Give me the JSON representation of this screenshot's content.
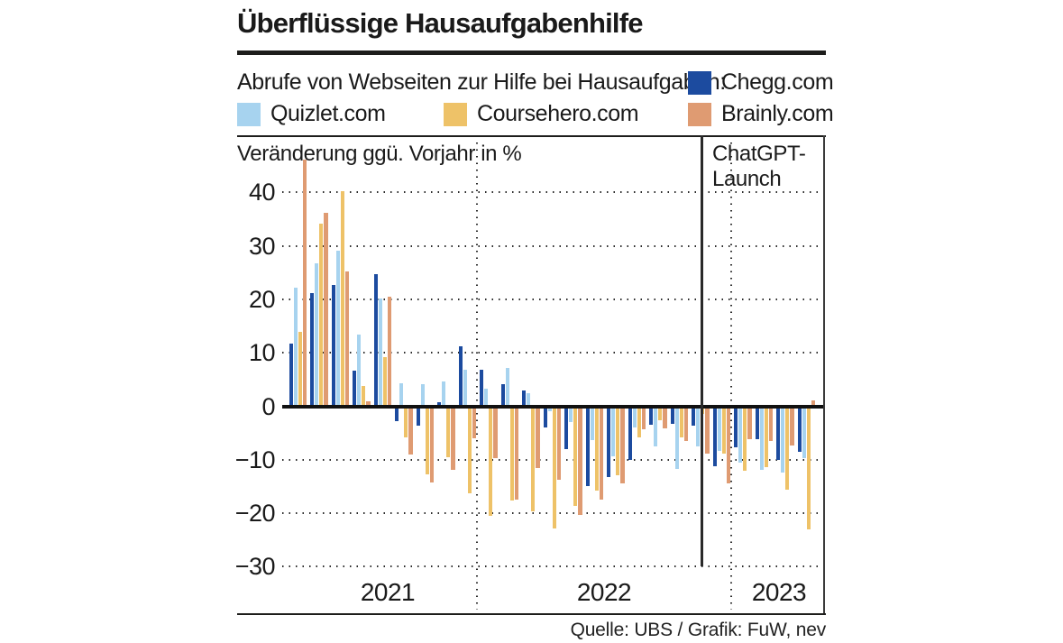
{
  "title": "Überflüssige Hausaufgabenhilfe",
  "legend": {
    "intro": "Abrufe von Webseiten zur Hilfe bei Hausaufgaben:",
    "chegg_label": "Chegg.com",
    "quizlet_label": "Quizlet.com",
    "coursehero_label": "Coursehero.com",
    "brainly_label": "Brainly.com"
  },
  "axis_note": "Veränderung ggü. Vorjahr in %",
  "annotation": {
    "line1": "ChatGPT-",
    "line2": "Launch"
  },
  "source": "Quelle: UBS / Grafik: FuW, nev",
  "colors": {
    "chegg": "#1c4b9f",
    "quizlet": "#a7d3ef",
    "coursehero": "#eec268",
    "brainly": "#df9b72",
    "rule": "#1d1d1b"
  },
  "chart_data": {
    "type": "bar",
    "title": "Überflüssige Hausaufgabenhilfe",
    "subtitle": "Abrufe von Webseiten zur Hilfe bei Hausaufgaben",
    "ylabel": "Veränderung ggü. Vorjahr in %",
    "ylim": [
      -30,
      46
    ],
    "grid": "dotted",
    "legend_position": "top",
    "x": [
      "2021-04",
      "2021-05",
      "2021-06",
      "2021-07",
      "2021-08",
      "2021-09",
      "2021-10",
      "2021-11",
      "2021-12",
      "2022-01",
      "2022-02",
      "2022-03",
      "2022-04",
      "2022-05",
      "2022-06",
      "2022-07",
      "2022-08",
      "2022-09",
      "2022-10",
      "2022-11",
      "2022-12",
      "2023-01",
      "2023-02",
      "2023-03",
      "2023-04"
    ],
    "series": [
      {
        "name": "Chegg.com",
        "color": "#1c4b9f",
        "values": [
          11.5,
          21,
          22.5,
          6.5,
          24.5,
          -2.6,
          -3.4,
          0.6,
          11,
          6.6,
          4,
          2.7,
          -3.8,
          -7.8,
          -14.7,
          -13,
          -9.9,
          -3.3,
          -3.2,
          -3.4,
          -11,
          -7.5,
          -6,
          -9.8,
          -8.4
        ]
      },
      {
        "name": "Quizlet.com",
        "color": "#a7d3ef",
        "values": [
          22,
          26.5,
          29,
          13.3,
          20,
          4.2,
          4,
          4.4,
          6.6,
          3.1,
          7,
          2.3,
          -0.7,
          -2.8,
          -6.2,
          -9.2,
          -3.8,
          -7.4,
          -11.5,
          -7.3,
          -8.2,
          -10.4,
          -11.8,
          -12.2,
          -9.6
        ]
      },
      {
        "name": "Coursehero.com",
        "color": "#eec268",
        "values": [
          13.7,
          34,
          40,
          3.6,
          9,
          -5.6,
          -12.5,
          -9.4,
          -16.1,
          -20.4,
          -17.5,
          -19.5,
          -22.7,
          -18.5,
          -15.6,
          -12.7,
          -5.6,
          -2.4,
          -5.6,
          -1.3,
          -8.7,
          -11.9,
          -11.2,
          -15.5,
          -22.8
        ]
      },
      {
        "name": "Brainly.com",
        "color": "#df9b72",
        "values": [
          46,
          36,
          25,
          0.7,
          20.4,
          -8.9,
          -14,
          -11.8,
          -5.8,
          -9.5,
          -17.3,
          -11.4,
          -13.5,
          -20.2,
          -17.3,
          -14.2,
          -4.2,
          -3.9,
          -6.3,
          -8.7,
          -14.3,
          -6,
          -6.3,
          -7.2,
          1
        ]
      }
    ],
    "y_ticks": [
      {
        "label": "40",
        "value": 40
      },
      {
        "label": "30",
        "value": 30
      },
      {
        "label": "20",
        "value": 20
      },
      {
        "label": "10",
        "value": 10
      },
      {
        "label": "0",
        "value": 0
      },
      {
        "label": "−10",
        "value": -10
      },
      {
        "label": "−20",
        "value": -20
      },
      {
        "label": "−30",
        "value": -30
      }
    ],
    "x_year_labels": [
      {
        "label": "2021",
        "x_center": 430
      },
      {
        "label": "2022",
        "x_center": 670
      },
      {
        "label": "2023",
        "x_center": 864
      }
    ],
    "year_separators_x": [
      529,
      811
    ],
    "event_line": {
      "x": 778,
      "label": "ChatGPT-Launch"
    }
  }
}
